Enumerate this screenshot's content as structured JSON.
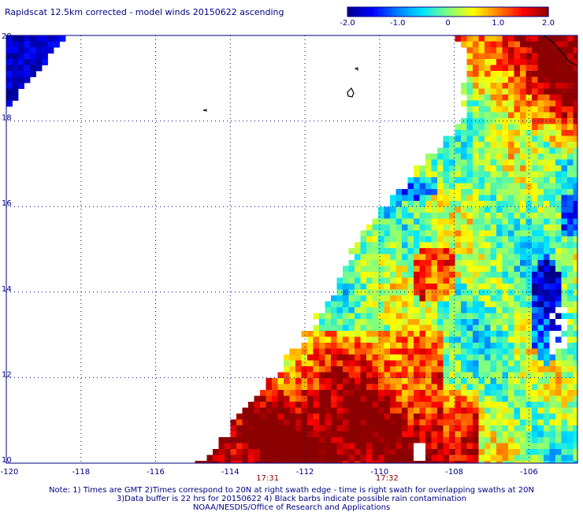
{
  "title": "Rapidscat 12.5km corrected - model winds 20150622 ascending",
  "colorbar": {
    "tick_labels": [
      "-2.0",
      "-1.0",
      "0",
      "1.0",
      "2.0"
    ],
    "tick_values": [
      -2.0,
      -1.0,
      0,
      1.0,
      2.0
    ],
    "range": [
      -2.0,
      2.0
    ],
    "colors": [
      "#00008b",
      "#0000ff",
      "#0080ff",
      "#00e5ff",
      "#80ff80",
      "#ffff00",
      "#ff8000",
      "#ff0000",
      "#8b0000"
    ]
  },
  "map": {
    "lon_range": [
      -120,
      -104.7
    ],
    "lat_range": [
      10,
      20
    ],
    "x_tick_labels": [
      "-120",
      "-118",
      "-116",
      "-114",
      "-112",
      "-110",
      "-108",
      "-106"
    ],
    "x_tick_values": [
      -120,
      -118,
      -116,
      -114,
      -112,
      -110,
      -108,
      -106
    ],
    "y_tick_labels": [
      "20",
      "18",
      "16",
      "14",
      "12",
      "10"
    ],
    "y_tick_values": [
      20,
      18,
      16,
      14,
      12,
      10
    ],
    "time_labels": [
      {
        "text": "17:31",
        "lon": -113.0
      },
      {
        "text": "17:32",
        "lon": -109.8
      }
    ]
  },
  "notes": {
    "line1": "Note: 1) Times are GMT 2)Times correspond to 20N at right swath edge - time is right swath for overlapping swaths at 20N",
    "line2": "3)Data buffer is 22 hrs for 20150622 4) Black barbs indicate possible rain contamination",
    "line3": "NOAA/NESDIS/Office of Research and Applications"
  }
}
